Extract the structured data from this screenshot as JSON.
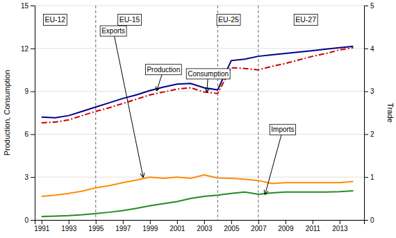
{
  "chart_data": {
    "type": "line",
    "x": [
      1991,
      1992,
      1993,
      1994,
      1995,
      1996,
      1997,
      1998,
      1999,
      2000,
      2001,
      2002,
      2003,
      2004,
      2005,
      2006,
      2007,
      2008,
      2009,
      2010,
      2011,
      2012,
      2013,
      2014
    ],
    "series": [
      {
        "name": "Production",
        "color": "#00008B",
        "line_style": "solid",
        "values": [
          7.2,
          7.15,
          7.3,
          7.6,
          7.9,
          8.2,
          8.5,
          8.75,
          9.05,
          9.3,
          9.5,
          9.55,
          9.25,
          9.1,
          11.15,
          11.25,
          11.45,
          11.55,
          11.65,
          11.75,
          11.85,
          11.95,
          12.05,
          12.15
        ]
      },
      {
        "name": "Consumption",
        "color": "#CC0000",
        "line_style": "dashdot",
        "values": [
          6.8,
          6.85,
          7.0,
          7.3,
          7.6,
          7.85,
          8.15,
          8.45,
          8.75,
          8.95,
          9.15,
          9.25,
          8.95,
          8.85,
          10.65,
          10.6,
          10.5,
          10.75,
          10.95,
          11.2,
          11.45,
          11.65,
          11.9,
          12.05
        ]
      },
      {
        "name": "Exports",
        "color": "#FF8C00",
        "line_style": "solid",
        "axis": "y2",
        "values": [
          0.55,
          0.58,
          0.62,
          0.67,
          0.75,
          0.8,
          0.87,
          0.93,
          1.0,
          0.97,
          1.0,
          0.97,
          1.05,
          0.98,
          0.97,
          0.95,
          0.92,
          0.85,
          0.87,
          0.87,
          0.87,
          0.87,
          0.87,
          0.9
        ]
      },
      {
        "name": "Imports",
        "color": "#228B22",
        "line_style": "solid",
        "axis": "y2",
        "values": [
          0.08,
          0.09,
          0.1,
          0.12,
          0.15,
          0.18,
          0.22,
          0.27,
          0.33,
          0.38,
          0.43,
          0.5,
          0.55,
          0.58,
          0.62,
          0.65,
          0.6,
          0.63,
          0.65,
          0.65,
          0.65,
          0.65,
          0.66,
          0.68
        ]
      }
    ],
    "y_label": "Production, Consumption",
    "y2_label": "Trade",
    "xlim": [
      1990.5,
      2014.8
    ],
    "xticks": [
      1991,
      1993,
      1995,
      1997,
      1999,
      2001,
      2003,
      2005,
      2007,
      2009,
      2011,
      2013
    ],
    "ylim": [
      0,
      15.0
    ],
    "yticks": [
      0,
      3,
      6,
      9,
      12,
      15
    ],
    "y2lim": [
      0,
      5.0
    ],
    "y2ticks": [
      0,
      1,
      2,
      3,
      4,
      5
    ],
    "grid": true,
    "vlines": [
      1995,
      2004,
      2007
    ],
    "annotations": [
      {
        "text": "EU-12",
        "x": 1992.0,
        "y": 14.3
      },
      {
        "text": "EU-15",
        "x": 1997.5,
        "y": 14.3
      },
      {
        "text": "EU-25",
        "x": 2004.8,
        "y": 14.3
      },
      {
        "text": "EU-27",
        "x": 2010.5,
        "y": 14.3
      },
      {
        "text": "Production",
        "x": 2000.0,
        "y": 10.8,
        "arrow_x": 1999.5,
        "arrow_y": 9.05
      },
      {
        "text": "Consumption",
        "x": 2003.3,
        "y": 10.5,
        "arrow_x": 2003.2,
        "arrow_y": 8.95
      },
      {
        "text": "Exports",
        "x": 1996.3,
        "y": 4.5,
        "arrow_x": 1998.5,
        "arrow_y": 1.0,
        "axis": "y2"
      },
      {
        "text": "Imports",
        "x": 2008.8,
        "y": 2.2,
        "arrow_x": 2007.5,
        "arrow_y": 0.6,
        "axis": "y2"
      }
    ]
  }
}
